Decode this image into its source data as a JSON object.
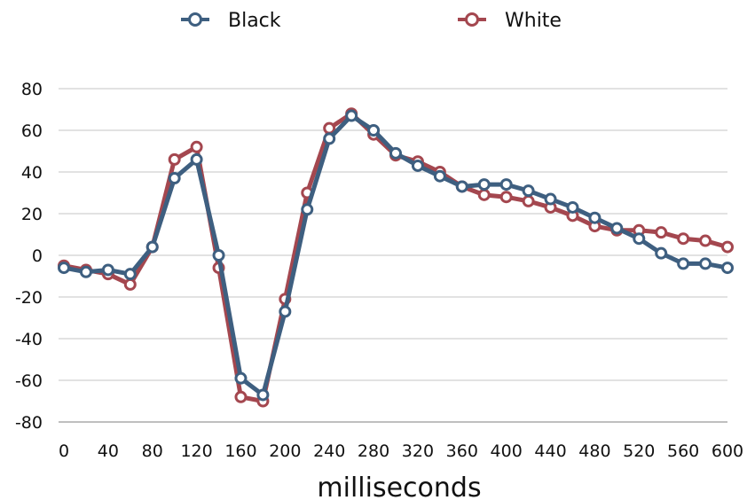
{
  "chart_data": {
    "type": "line",
    "title": "",
    "xlabel": "milliseconds",
    "ylabel": "",
    "xlim": [
      0,
      600
    ],
    "ylim": [
      -80,
      80
    ],
    "x_ticks": [
      0,
      40,
      80,
      120,
      160,
      200,
      240,
      280,
      320,
      360,
      400,
      440,
      480,
      520,
      560,
      600
    ],
    "y_ticks": [
      80,
      60,
      40,
      20,
      0,
      -20,
      -40,
      -60,
      -80
    ],
    "grid": "horizontal",
    "legend_position": "top",
    "x": [
      0,
      20,
      40,
      60,
      80,
      100,
      120,
      140,
      160,
      180,
      200,
      220,
      240,
      260,
      280,
      300,
      320,
      340,
      360,
      380,
      400,
      420,
      440,
      460,
      480,
      500,
      520,
      540,
      560,
      580,
      600
    ],
    "series": [
      {
        "name": "White",
        "color": "#a4474f",
        "values": [
          -5,
          -7,
          -9,
          -14,
          4,
          46,
          52,
          -6,
          -68,
          -70,
          -21,
          30,
          61,
          68,
          58,
          48,
          45,
          40,
          33,
          29,
          28,
          26,
          23,
          19,
          14,
          12,
          12,
          11,
          8,
          7,
          4
        ]
      },
      {
        "name": "Black",
        "color": "#3e5f80",
        "values": [
          -6,
          -8,
          -7,
          -9,
          4,
          37,
          46,
          0,
          -59,
          -67,
          -27,
          22,
          56,
          67,
          60,
          49,
          43,
          38,
          33,
          34,
          34,
          31,
          27,
          23,
          18,
          13,
          8,
          1,
          -4,
          -4,
          -6
        ]
      }
    ]
  }
}
